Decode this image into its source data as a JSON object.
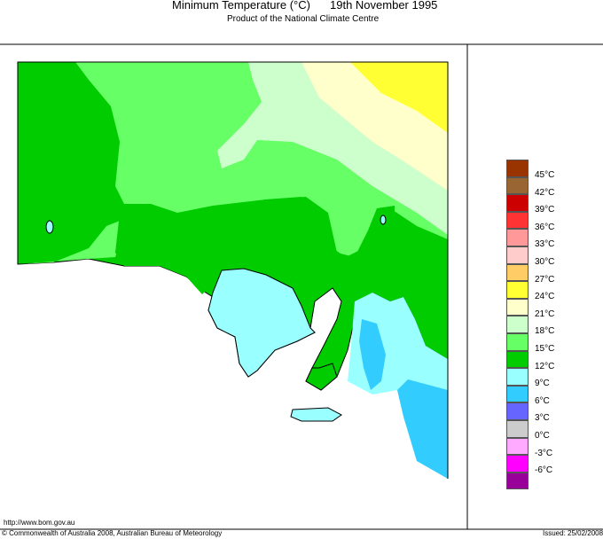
{
  "header": {
    "title": "Minimum Temperature (°C)",
    "date": "19th November 1995",
    "subtitle": "Product of the National Climate Centre"
  },
  "footer": {
    "url": "http://www.bom.gov.au",
    "copyright": "© Commonwealth of Australia 2008, Australian Bureau of Meteorology",
    "issued": "Issued: 25/02/2008"
  },
  "legend": {
    "colors": [
      "#993300",
      "#996633",
      "#cc0000",
      "#ff3333",
      "#ff9999",
      "#ffcccc",
      "#ffcc66",
      "#ffff33",
      "#ffffcc",
      "#ccffcc",
      "#66ff66",
      "#00cc00",
      "#99ffff",
      "#33ccff",
      "#6666ff",
      "#cccccc",
      "#ffaaff",
      "#ff00ff",
      "#990099"
    ],
    "labels": [
      "45°C",
      "42°C",
      "39°C",
      "36°C",
      "33°C",
      "30°C",
      "27°C",
      "24°C",
      "21°C",
      "18°C",
      "15°C",
      "12°C",
      "9°C",
      "6°C",
      "3°C",
      "0°C",
      "-3°C",
      "-6°C"
    ]
  }
}
